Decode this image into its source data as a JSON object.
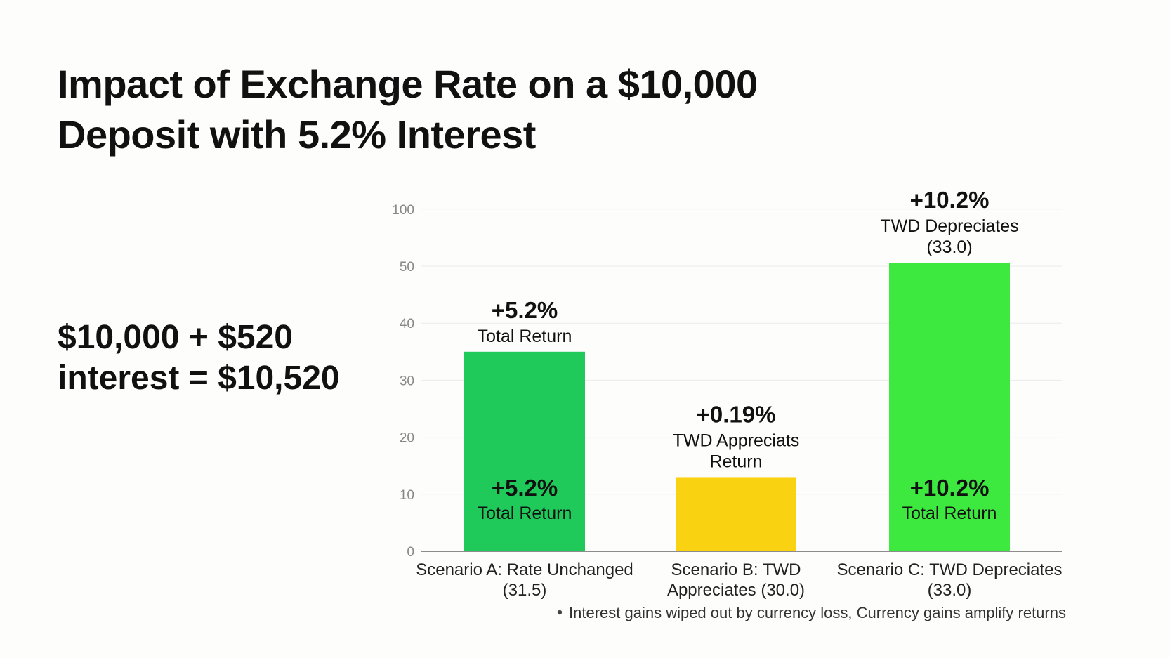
{
  "title": {
    "line1": "Impact of Exchange Rate on a $10,000",
    "line2": "Deposit with 5.2% Interest"
  },
  "summary": {
    "line1": "$10,000 + $520",
    "line2": "interest = $10,520"
  },
  "chart_data": {
    "type": "bar",
    "y_ticks": [
      0,
      10,
      20,
      30,
      40,
      50,
      100
    ],
    "ylim": [
      0,
      100
    ],
    "grid": true,
    "categories": [
      {
        "label_line1": "Scenario A: Rate Unchanged",
        "label_line2": "(31.5)"
      },
      {
        "label_line1": "Scenario B: TWD",
        "label_line2": "Appreciates (30.0)"
      },
      {
        "label_line1": "Scenario C: TWD Depreciates",
        "label_line2": "(33.0)"
      }
    ],
    "values": [
      35,
      13,
      53
    ],
    "colors": [
      "#1fc95a",
      "#f9d212",
      "#3de83f"
    ],
    "top_labels": [
      {
        "pct": "+5.2%",
        "lines": [
          "Total Return"
        ]
      },
      {
        "pct": "+0.19%",
        "lines": [
          "TWD Appreciats",
          "Return"
        ]
      },
      {
        "pct": "+10.2%",
        "lines": [
          "TWD Depreciates",
          "(33.0)"
        ]
      }
    ],
    "inner_labels": [
      {
        "pct": "+5.2%",
        "line": "Total Return"
      },
      null,
      {
        "pct": "+10.2%",
        "line": "Total Return"
      }
    ],
    "footnote": "Interest gains wiped out by currency loss, Currency gains amplify returns"
  }
}
